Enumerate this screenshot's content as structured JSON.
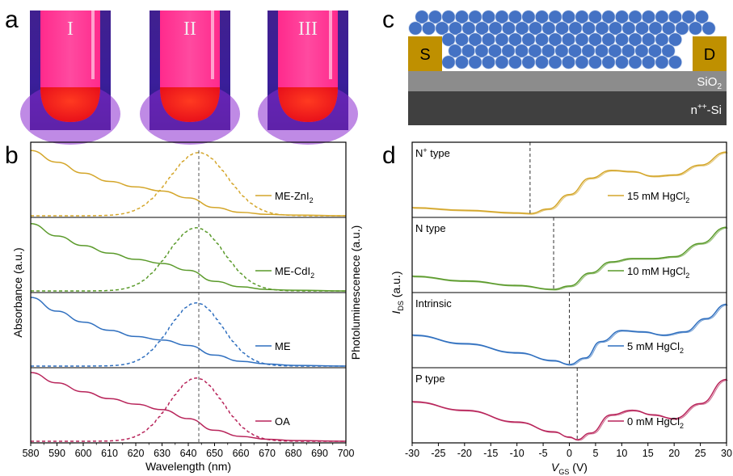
{
  "panel_labels": {
    "a": "a",
    "b": "b",
    "c": "c",
    "d": "d"
  },
  "panel_a": {
    "tubes": [
      {
        "label": "I"
      },
      {
        "label": "II"
      },
      {
        "label": "III"
      }
    ],
    "colors": {
      "background": "#3d1f9a",
      "glow": "#ff1e6e",
      "liquid": "#ff2a1a"
    }
  },
  "panel_c": {
    "source_label": "S",
    "drain_label": "D",
    "oxide_label": "SiO",
    "oxide_sub": "2",
    "substrate_label_base": "n",
    "substrate_label_sup": "++",
    "substrate_label_rest": "-Si",
    "colors": {
      "qd": "#4472c4",
      "electrode": "#bf9000",
      "oxide": "#8c8c8c",
      "substrate": "#404040"
    }
  },
  "chart_data": [
    {
      "panel": "b",
      "type": "line",
      "xlabel": "Wavelength (nm)",
      "ylabel_left": "Absorbance (a.u.)",
      "ylabel_right": "Photoluminescenece (a.u.)",
      "xlim": [
        580,
        700
      ],
      "xticks": [
        580,
        590,
        600,
        610,
        620,
        630,
        640,
        650,
        660,
        670,
        680,
        690,
        700
      ],
      "reference_line_x": 644,
      "grid": false,
      "series": [
        {
          "name": "ME-ZnI",
          "name_sub": "2",
          "color": "#d4a62a",
          "absorbance": {
            "x": [
              580,
              590,
              600,
              610,
              620,
              630,
              640,
              650,
              660,
              670,
              680,
              700
            ],
            "y": [
              0.95,
              0.78,
              0.62,
              0.5,
              0.42,
              0.36,
              0.26,
              0.12,
              0.05,
              0.02,
              0.01,
              0.0
            ]
          },
          "pl": {
            "peak_nm": 644,
            "fwhm_nm": 26
          }
        },
        {
          "name": "ME-CdI",
          "name_sub": "2",
          "color": "#5a9a2a",
          "absorbance": {
            "x": [
              580,
              590,
              600,
              610,
              620,
              630,
              640,
              650,
              660,
              670,
              680,
              700
            ],
            "y": [
              0.98,
              0.8,
              0.66,
              0.55,
              0.46,
              0.4,
              0.3,
              0.14,
              0.06,
              0.02,
              0.01,
              0.0
            ]
          },
          "pl": {
            "peak_nm": 643,
            "fwhm_nm": 25
          }
        },
        {
          "name": "ME",
          "color": "#2f6fbf",
          "absorbance": {
            "x": [
              580,
              590,
              600,
              610,
              620,
              630,
              640,
              650,
              660,
              670,
              680,
              700
            ],
            "y": [
              1.0,
              0.8,
              0.64,
              0.52,
              0.43,
              0.38,
              0.3,
              0.16,
              0.07,
              0.03,
              0.01,
              0.0
            ]
          },
          "pl": {
            "peak_nm": 643,
            "fwhm_nm": 24
          }
        },
        {
          "name": "OA",
          "color": "#b8245a",
          "absorbance": {
            "x": [
              580,
              590,
              600,
              610,
              620,
              630,
              640,
              650,
              660,
              670,
              680,
              700
            ],
            "y": [
              1.0,
              0.85,
              0.72,
              0.62,
              0.54,
              0.46,
              0.33,
              0.16,
              0.07,
              0.03,
              0.01,
              0.0
            ]
          },
          "pl": {
            "peak_nm": 643,
            "fwhm_nm": 24
          }
        }
      ]
    },
    {
      "panel": "d",
      "type": "line",
      "xlabel_base": "V",
      "xlabel_sub": "GS",
      "xlabel_unit": " (V)",
      "ylabel_base": "I",
      "ylabel_sub": "DS",
      "ylabel_unit": " (a.u.)",
      "xlim": [
        -30,
        30
      ],
      "xticks": [
        -30,
        -25,
        -20,
        -15,
        -10,
        -5,
        0,
        5,
        10,
        15,
        20,
        25,
        30
      ],
      "grid": false,
      "series": [
        {
          "type_label_base": "N",
          "type_label_sup": "+",
          "type_label_rest": " type",
          "legend": "15 mM HgCl",
          "legend_sub": "2",
          "color": "#d4a62a",
          "dirac_v": -7.5,
          "x": [
            -30,
            -20,
            -10,
            -7.5,
            -4,
            0,
            4,
            8,
            12,
            16,
            20,
            25,
            30
          ],
          "y": [
            0.1,
            0.06,
            0.02,
            0.01,
            0.08,
            0.3,
            0.55,
            0.67,
            0.65,
            0.58,
            0.6,
            0.75,
            0.95
          ]
        },
        {
          "type_label_base": "N type",
          "legend": "10 mM HgCl",
          "legend_sub": "2",
          "color": "#5a9a2a",
          "dirac_v": -3,
          "x": [
            -30,
            -20,
            -10,
            -3,
            0,
            4,
            8,
            12,
            16,
            20,
            25,
            30
          ],
          "y": [
            0.2,
            0.13,
            0.06,
            0.0,
            0.05,
            0.25,
            0.42,
            0.47,
            0.47,
            0.5,
            0.7,
            0.95
          ]
        },
        {
          "type_label_base": "Intrinsic",
          "legend": "5 mM HgCl",
          "legend_sub": "2",
          "color": "#2f6fbf",
          "dirac_v": 0,
          "x": [
            -30,
            -20,
            -10,
            -3,
            0,
            3,
            6,
            10,
            14,
            18,
            22,
            26,
            30
          ],
          "y": [
            0.45,
            0.32,
            0.18,
            0.06,
            0.0,
            0.1,
            0.35,
            0.52,
            0.5,
            0.45,
            0.5,
            0.7,
            0.92
          ]
        },
        {
          "type_label_base": "P type",
          "legend": "0 mM HgCl",
          "legend_sub": "2",
          "color": "#b8245a",
          "dirac_v": 1.5,
          "x": [
            -30,
            -20,
            -10,
            -3,
            0,
            1.5,
            4,
            8,
            12,
            16,
            20,
            25,
            30
          ],
          "y": [
            0.58,
            0.45,
            0.27,
            0.12,
            0.04,
            0.0,
            0.1,
            0.38,
            0.45,
            0.38,
            0.32,
            0.55,
            0.92
          ]
        }
      ]
    }
  ]
}
